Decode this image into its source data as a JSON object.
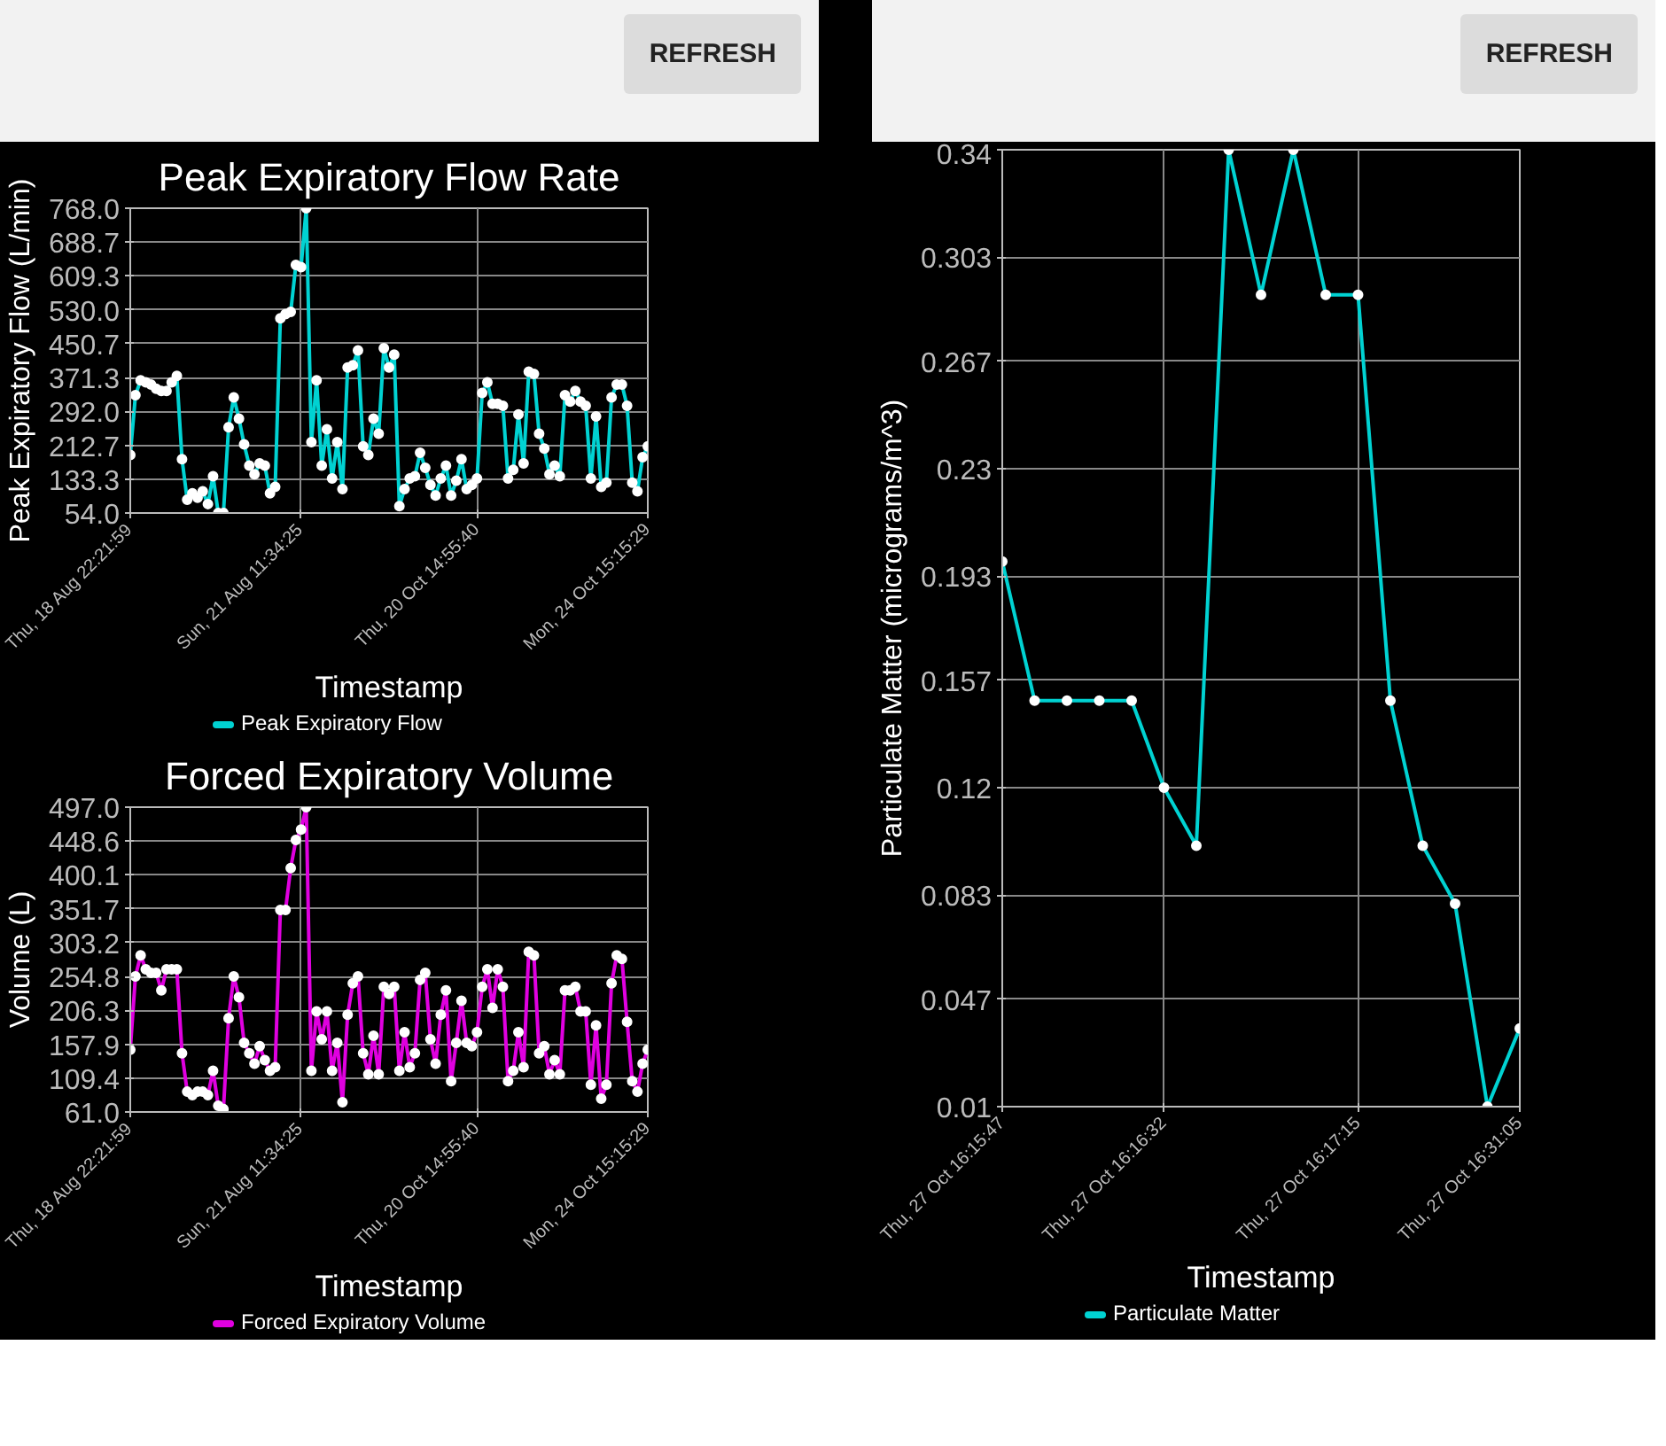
{
  "chart_data": [
    {
      "type": "line",
      "title": "Peak Expiratory Flow Rate",
      "xlabel": "Timestamp",
      "ylabel": "Peak Expiratory Flow (L/min)",
      "annotations": [
        "REFRESH"
      ],
      "categories": [
        "Thu, 18 Aug 22:21:59",
        null,
        null,
        null,
        null,
        null,
        null,
        null,
        null,
        null,
        null,
        null,
        null,
        null,
        null,
        null,
        null,
        null,
        null,
        null,
        null,
        null,
        null,
        null,
        null,
        null,
        null,
        null,
        null,
        null,
        null,
        null,
        null,
        "Sun, 21 Aug 11:34:25",
        null,
        null,
        null,
        null,
        null,
        null,
        null,
        null,
        null,
        null,
        null,
        null,
        null,
        null,
        null,
        null,
        null,
        null,
        null,
        null,
        null,
        null,
        null,
        null,
        null,
        null,
        null,
        null,
        null,
        null,
        null,
        null,
        null,
        "Thu, 20 Oct 14:55:40",
        null,
        null,
        null,
        null,
        null,
        null,
        null,
        null,
        null,
        null,
        null,
        null,
        null,
        null,
        null,
        null,
        null,
        null,
        null,
        null,
        null,
        null,
        null,
        null,
        null,
        null,
        null,
        null,
        null,
        null,
        null,
        null,
        "Mon, 24 Oct 15:15:29"
      ],
      "series": [
        {
          "name": "Peak Expiratory Flow",
          "color": "#00d2d2",
          "values": [
            190,
            330,
            365,
            360,
            355,
            345,
            340,
            340,
            360,
            375,
            180,
            85,
            100,
            90,
            105,
            75,
            140,
            54,
            54,
            255,
            325,
            275,
            215,
            165,
            145,
            170,
            165,
            100,
            115,
            510,
            520,
            525,
            635,
            630,
            768,
            220,
            365,
            165,
            250,
            135,
            220,
            110,
            395,
            400,
            435,
            210,
            190,
            275,
            240,
            440,
            395,
            425,
            70,
            110,
            135,
            140,
            195,
            160,
            120,
            95,
            135,
            165,
            95,
            130,
            180,
            110,
            120,
            135,
            335,
            360,
            310,
            310,
            305,
            135,
            155,
            285,
            170,
            385,
            380,
            240,
            205,
            145,
            165,
            140,
            330,
            315,
            340,
            315,
            305,
            135,
            280,
            115,
            125,
            325,
            355,
            355,
            305,
            125,
            105,
            185,
            210
          ]
        }
      ],
      "ylim": [
        54,
        768
      ],
      "yticks": [
        {
          "value": 54,
          "label": "54.0"
        },
        {
          "value": 133.3,
          "label": "133.3"
        },
        {
          "value": 212.7,
          "label": "212.7"
        },
        {
          "value": 292,
          "label": "292.0"
        },
        {
          "value": 371.3,
          "label": "371.3"
        },
        {
          "value": 450.7,
          "label": "450.7"
        },
        {
          "value": 530,
          "label": "530.0"
        },
        {
          "value": 609.3,
          "label": "609.3"
        },
        {
          "value": 688.7,
          "label": "688.7"
        },
        {
          "value": 768,
          "label": "768.0"
        }
      ],
      "grid": true,
      "legend": "bottom",
      "marker": "circle"
    },
    {
      "type": "line",
      "title": "Forced Expiratory Volume",
      "xlabel": "Timestamp",
      "ylabel": "Volume (L)",
      "categories": [
        "Thu, 18 Aug 22:21:59",
        null,
        null,
        null,
        null,
        null,
        null,
        null,
        null,
        null,
        null,
        null,
        null,
        null,
        null,
        null,
        null,
        null,
        null,
        null,
        null,
        null,
        null,
        null,
        null,
        null,
        null,
        null,
        null,
        null,
        null,
        null,
        null,
        "Sun, 21 Aug 11:34:25",
        null,
        null,
        null,
        null,
        null,
        null,
        null,
        null,
        null,
        null,
        null,
        null,
        null,
        null,
        null,
        null,
        null,
        null,
        null,
        null,
        null,
        null,
        null,
        null,
        null,
        null,
        null,
        null,
        null,
        null,
        null,
        null,
        null,
        "Thu, 20 Oct 14:55:40",
        null,
        null,
        null,
        null,
        null,
        null,
        null,
        null,
        null,
        null,
        null,
        null,
        null,
        null,
        null,
        null,
        null,
        null,
        null,
        null,
        null,
        null,
        null,
        null,
        null,
        null,
        null,
        null,
        null,
        null,
        null,
        null,
        "Mon, 24 Oct 15:15:29"
      ],
      "series": [
        {
          "name": "Forced Expiratory Volume",
          "color": "#e000e0",
          "values": [
            150,
            255,
            285,
            265,
            260,
            260,
            235,
            265,
            265,
            265,
            145,
            90,
            85,
            90,
            90,
            85,
            120,
            70,
            65,
            195,
            255,
            225,
            160,
            145,
            130,
            155,
            135,
            120,
            125,
            350,
            350,
            410,
            450,
            465,
            497,
            120,
            205,
            165,
            205,
            120,
            160,
            75,
            200,
            245,
            255,
            145,
            115,
            170,
            115,
            240,
            230,
            240,
            120,
            175,
            125,
            145,
            250,
            260,
            165,
            130,
            200,
            235,
            105,
            160,
            220,
            160,
            155,
            175,
            240,
            265,
            210,
            265,
            240,
            105,
            120,
            175,
            125,
            290,
            285,
            145,
            155,
            115,
            135,
            115,
            235,
            235,
            240,
            205,
            205,
            100,
            185,
            80,
            100,
            245,
            285,
            280,
            190,
            105,
            90,
            130,
            150
          ]
        }
      ],
      "ylim": [
        61,
        497
      ],
      "yticks": [
        {
          "value": 61,
          "label": "61.0"
        },
        {
          "value": 109.4,
          "label": "109.4"
        },
        {
          "value": 157.9,
          "label": "157.9"
        },
        {
          "value": 206.3,
          "label": "206.3"
        },
        {
          "value": 254.8,
          "label": "254.8"
        },
        {
          "value": 303.2,
          "label": "303.2"
        },
        {
          "value": 351.7,
          "label": "351.7"
        },
        {
          "value": 400.1,
          "label": "400.1"
        },
        {
          "value": 448.6,
          "label": "448.6"
        },
        {
          "value": 497,
          "label": "497.0"
        }
      ],
      "grid": true,
      "legend": "bottom",
      "marker": "circle"
    },
    {
      "type": "line",
      "xlabel": "Timestamp",
      "ylabel": "Particulate Matter (micrograms/m^3)",
      "annotations": [
        "REFRESH"
      ],
      "categories": [
        "Thu, 27 Oct 16:15:47",
        null,
        null,
        null,
        null,
        "Thu, 27 Oct 16:16:32",
        null,
        null,
        null,
        null,
        null,
        "Thu, 27 Oct 16:17:15",
        null,
        null,
        null,
        null,
        "Thu, 27 Oct 16:31:05"
      ],
      "series": [
        {
          "name": "Particulate Matter",
          "color": "#00d2d2",
          "values": [
            0.198,
            0.15,
            0.15,
            0.15,
            0.15,
            0.12,
            0.1,
            0.34,
            0.29,
            0.34,
            0.29,
            0.29,
            0.15,
            0.1,
            0.08,
            0.01,
            0.037
          ]
        }
      ],
      "ylim": [
        0.01,
        0.34
      ],
      "yticks": [
        0.01,
        0.047,
        0.083,
        0.12,
        0.157,
        0.193,
        0.23,
        0.267,
        0.303,
        0.34
      ],
      "grid": true,
      "legend": "bottom",
      "marker": "circle"
    }
  ]
}
